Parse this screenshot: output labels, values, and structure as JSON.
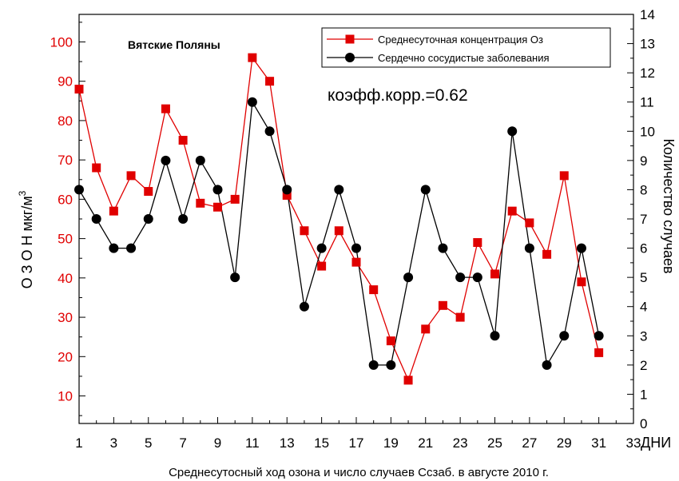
{
  "chart_data": {
    "type": "line",
    "caption": "Среднесутосный ход озона и число случаев Ссзаб. в августе 2010 г.",
    "station_label": "Вятские Поляны",
    "annotation": "коэфф.корр.=0.62",
    "xlabel": "ДНИ",
    "ylabel_left": "О З О Н мкг/м",
    "ylabel_left_sup": "3",
    "ylabel_right": "Количество случаев",
    "xlim": [
      1,
      33
    ],
    "ylim_left": [
      3,
      107
    ],
    "ylim_right": [
      0,
      14
    ],
    "x_ticks": [
      "1",
      "3",
      "5",
      "7",
      "9",
      "11",
      "13",
      "15",
      "17",
      "19",
      "21",
      "23",
      "25",
      "27",
      "29",
      "31",
      "33"
    ],
    "y_left_ticks": [
      "10",
      "20",
      "30",
      "40",
      "50",
      "60",
      "70",
      "80",
      "90",
      "100"
    ],
    "y_right_ticks": [
      "0",
      "1",
      "2",
      "3",
      "4",
      "5",
      "6",
      "7",
      "8",
      "9",
      "10",
      "11",
      "12",
      "13",
      "14"
    ],
    "legend_position": "top-right",
    "x": [
      1,
      2,
      3,
      4,
      5,
      6,
      7,
      8,
      9,
      10,
      11,
      12,
      13,
      14,
      15,
      16,
      17,
      18,
      19,
      20,
      21,
      22,
      23,
      24,
      25,
      26,
      27,
      28,
      29,
      30,
      31
    ],
    "series": [
      {
        "name": "Среднесуточная концентрация Оз",
        "axis": "left",
        "color": "#e00000",
        "marker": "square",
        "values": [
          88,
          68,
          57,
          66,
          62,
          83,
          75,
          59,
          58,
          60,
          96,
          90,
          61,
          52,
          43,
          52,
          44,
          37,
          24,
          14,
          27,
          33,
          30,
          49,
          41,
          57,
          54,
          46,
          66,
          39,
          21
        ]
      },
      {
        "name": "Сердечно сосудистые заболевания",
        "axis": "right",
        "color": "#000000",
        "marker": "circle",
        "values": [
          8,
          7,
          6,
          6,
          7,
          9,
          7,
          9,
          8,
          5,
          11,
          10,
          8,
          4,
          6,
          8,
          6,
          2,
          2,
          5,
          8,
          6,
          5,
          5,
          3,
          10,
          6,
          2,
          3,
          6,
          3
        ]
      }
    ]
  }
}
